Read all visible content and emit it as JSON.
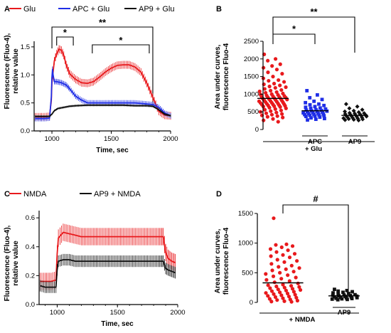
{
  "panels": {
    "A": "A",
    "B": "B",
    "C": "C",
    "D": "D"
  },
  "chart_data": [
    {
      "panel": "A",
      "type": "line",
      "xlabel": "Time, sec",
      "ylabel": [
        "Fluorescence (Fluo-4),",
        "relative value"
      ],
      "xlim": [
        850,
        2000
      ],
      "ylim": [
        0,
        1.6
      ],
      "xticks": [
        "1000",
        "1500",
        "2000"
      ],
      "yticks": [
        "0.0",
        "0.5",
        "1.0",
        "1.5"
      ],
      "series": [
        {
          "name": "Glu",
          "color": "#e8191c",
          "x": [
            860,
            900,
            940,
            980,
            995,
            1000,
            1010,
            1020,
            1040,
            1060,
            1080,
            1100,
            1120,
            1150,
            1200,
            1250,
            1300,
            1350,
            1400,
            1450,
            1500,
            1550,
            1600,
            1650,
            1700,
            1750,
            1800,
            1850,
            1900,
            1950,
            2000
          ],
          "y": [
            0.25,
            0.25,
            0.25,
            0.26,
            0.55,
            0.85,
            1.05,
            1.25,
            1.38,
            1.46,
            1.44,
            1.35,
            1.18,
            1.02,
            0.92,
            0.86,
            0.85,
            0.88,
            0.96,
            1.05,
            1.12,
            1.17,
            1.18,
            1.18,
            1.14,
            1.05,
            0.85,
            0.6,
            0.35,
            0.28,
            0.27
          ],
          "err": 0.07
        },
        {
          "name": "APC + Glu",
          "color": "#1f2ee6",
          "x": [
            860,
            900,
            940,
            980,
            995,
            1000,
            1005,
            1010,
            1020,
            1040,
            1060,
            1080,
            1100,
            1120,
            1150,
            1200,
            1250,
            1300,
            1350,
            1400,
            1450,
            1500,
            1550,
            1600,
            1650,
            1700,
            1750,
            1800,
            1850,
            1900,
            1950,
            2000
          ],
          "y": [
            0.22,
            0.22,
            0.22,
            0.23,
            0.6,
            0.95,
            1.1,
            1.0,
            0.88,
            0.88,
            0.87,
            0.86,
            0.84,
            0.82,
            0.75,
            0.62,
            0.55,
            0.5,
            0.5,
            0.5,
            0.5,
            0.5,
            0.5,
            0.5,
            0.5,
            0.5,
            0.49,
            0.48,
            0.47,
            0.42,
            0.32,
            0.27
          ],
          "err": 0.05
        },
        {
          "name": "AP9 + Glu",
          "color": "#111111",
          "x": [
            860,
            900,
            940,
            980,
            1000,
            1020,
            1050,
            1100,
            1150,
            1200,
            1300,
            1400,
            1500,
            1600,
            1700,
            1800,
            1850,
            1900,
            1950,
            2000
          ],
          "y": [
            0.26,
            0.26,
            0.26,
            0.26,
            0.3,
            0.36,
            0.4,
            0.42,
            0.44,
            0.45,
            0.46,
            0.46,
            0.46,
            0.46,
            0.45,
            0.45,
            0.44,
            0.38,
            0.3,
            0.27
          ],
          "err": 0.02
        }
      ],
      "brackets": [
        {
          "from": 1000,
          "to": 1850,
          "label": "**"
        },
        {
          "from": 1040,
          "to": 1180,
          "label": "*"
        },
        {
          "from": 1340,
          "to": 1820,
          "label": "*"
        }
      ]
    },
    {
      "panel": "B",
      "type": "scatter",
      "ylabel": [
        "Area under curves,",
        "fluorescence Fluo-4"
      ],
      "ylim": [
        0,
        2500
      ],
      "yticks": [
        "0",
        "500",
        "1000",
        "1500",
        "2000",
        "2500"
      ],
      "categories": [
        "",
        "APC",
        "AP9"
      ],
      "group_label": "+ Glu",
      "groups": [
        {
          "color": "#e8191c",
          "marker": "circle",
          "mean": 880,
          "values": [
            2130,
            2000,
            1950,
            1850,
            1800,
            1750,
            1700,
            1620,
            1580,
            1500,
            1450,
            1400,
            1380,
            1350,
            1300,
            1280,
            1250,
            1220,
            1200,
            1180,
            1150,
            1120,
            1100,
            1080,
            1060,
            1040,
            1020,
            1000,
            990,
            980,
            960,
            950,
            940,
            930,
            920,
            910,
            900,
            890,
            880,
            870,
            860,
            850,
            840,
            830,
            820,
            810,
            800,
            790,
            780,
            770,
            760,
            750,
            740,
            730,
            720,
            710,
            700,
            690,
            680,
            670,
            660,
            650,
            640,
            620,
            600,
            580,
            560,
            540,
            520,
            500,
            480,
            460,
            440,
            420,
            400,
            380,
            360,
            340,
            300,
            260,
            220
          ]
        },
        {
          "color": "#1f2ee6",
          "marker": "square",
          "mean": 530,
          "values": [
            1100,
            980,
            900,
            850,
            800,
            760,
            720,
            700,
            680,
            650,
            630,
            610,
            600,
            580,
            560,
            550,
            540,
            530,
            520,
            510,
            500,
            490,
            480,
            470,
            460,
            450,
            440,
            430,
            420,
            410,
            400,
            390,
            380,
            370,
            350,
            330,
            310,
            290,
            270
          ]
        },
        {
          "color": "#111111",
          "marker": "diamond",
          "mean": 400,
          "values": [
            720,
            650,
            600,
            560,
            530,
            510,
            490,
            470,
            460,
            450,
            440,
            430,
            420,
            410,
            400,
            395,
            390,
            380,
            370,
            360,
            350,
            340,
            330,
            320,
            310,
            300,
            290,
            280,
            270,
            260
          ]
        }
      ],
      "brackets": [
        {
          "from": 0,
          "to": 2,
          "label": "**"
        },
        {
          "from": 0,
          "to": 1,
          "label": "*"
        }
      ]
    },
    {
      "panel": "C",
      "type": "line",
      "xlabel": "Time, sec",
      "ylabel": [
        "Fluorescence (Fluo-4),",
        "relative value"
      ],
      "xlim": [
        850,
        2000
      ],
      "ylim": [
        0,
        0.65
      ],
      "xticks": [
        "1000",
        "1500",
        "2000"
      ],
      "yticks": [
        "0.0",
        "0.2",
        "0.4",
        "0.6"
      ],
      "series": [
        {
          "name": "NMDA",
          "color": "#e8191c",
          "x": [
            860,
            900,
            950,
            990,
            1000,
            1010,
            1050,
            1100,
            1150,
            1200,
            1250,
            1300,
            1350,
            1400,
            1450,
            1500,
            1550,
            1600,
            1650,
            1700,
            1750,
            1800,
            1850,
            1880,
            1900,
            1920,
            1950,
            1980
          ],
          "y": [
            0.16,
            0.16,
            0.16,
            0.17,
            0.35,
            0.46,
            0.5,
            0.49,
            0.48,
            0.47,
            0.47,
            0.47,
            0.47,
            0.47,
            0.47,
            0.47,
            0.47,
            0.47,
            0.47,
            0.47,
            0.47,
            0.47,
            0.47,
            0.47,
            0.36,
            0.32,
            0.3,
            0.29
          ],
          "err": 0.06
        },
        {
          "name": "AP9 + NMDA",
          "color": "#111111",
          "x": [
            860,
            900,
            950,
            990,
            1000,
            1010,
            1050,
            1100,
            1150,
            1200,
            1300,
            1400,
            1500,
            1600,
            1700,
            1800,
            1850,
            1880,
            1900,
            1920,
            1950,
            1980
          ],
          "y": [
            0.13,
            0.12,
            0.12,
            0.12,
            0.24,
            0.3,
            0.31,
            0.31,
            0.3,
            0.3,
            0.3,
            0.3,
            0.3,
            0.3,
            0.3,
            0.3,
            0.3,
            0.3,
            0.25,
            0.24,
            0.23,
            0.22
          ],
          "err": 0.04
        }
      ]
    },
    {
      "panel": "D",
      "type": "scatter",
      "ylabel": [
        "Area under curves,",
        "fluorescence Fluo-4"
      ],
      "ylim": [
        0,
        1500
      ],
      "yticks": [
        "0",
        "500",
        "1000",
        "1500"
      ],
      "categories": [
        "",
        "AP9"
      ],
      "group_label": "+ NMDA",
      "groups": [
        {
          "color": "#e8191c",
          "marker": "circle",
          "mean": 330,
          "values": [
            1420,
            980,
            970,
            950,
            930,
            900,
            880,
            850,
            820,
            800,
            780,
            760,
            720,
            700,
            680,
            650,
            620,
            600,
            580,
            560,
            540,
            520,
            500,
            480,
            460,
            440,
            420,
            400,
            380,
            360,
            340,
            320,
            300,
            290,
            280,
            270,
            260,
            250,
            240,
            230,
            220,
            210,
            200,
            190,
            180,
            170,
            160,
            150,
            140,
            130,
            120,
            110,
            100,
            90,
            80,
            70,
            60,
            50,
            40,
            30,
            20,
            15,
            10
          ]
        },
        {
          "color": "#111111",
          "marker": "square",
          "mean": 110,
          "values": [
            220,
            200,
            190,
            180,
            170,
            160,
            150,
            140,
            130,
            125,
            120,
            115,
            110,
            105,
            100,
            95,
            90,
            85,
            80,
            75,
            70,
            65,
            60,
            55,
            50,
            45
          ]
        }
      ],
      "brackets": [
        {
          "from": 0,
          "to": 1,
          "label": "#"
        }
      ]
    }
  ]
}
